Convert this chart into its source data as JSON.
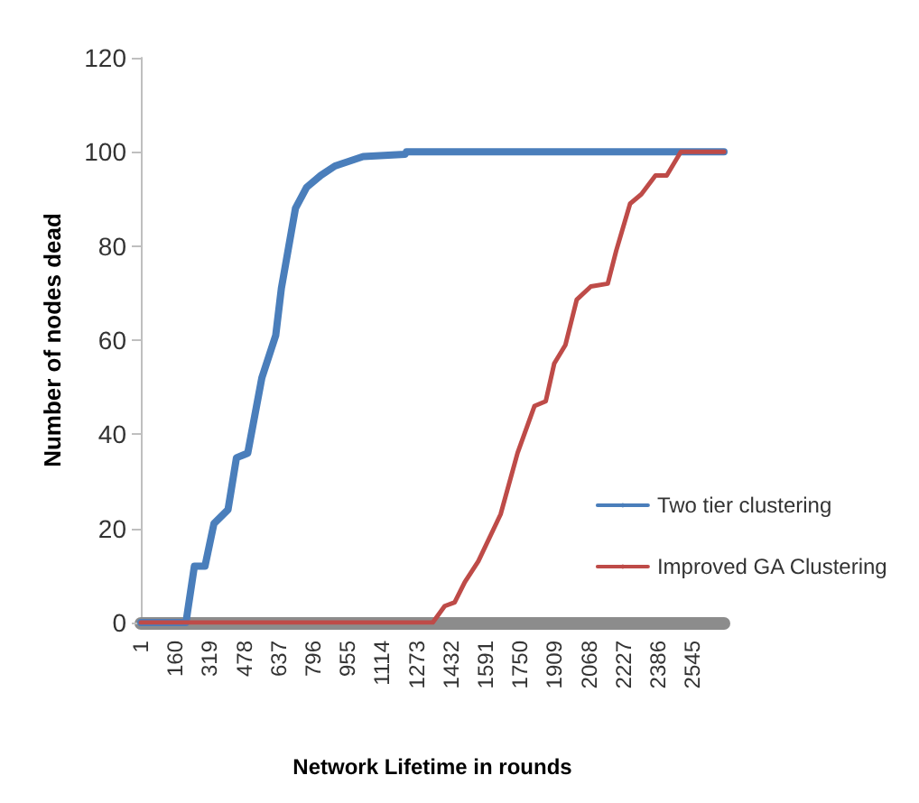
{
  "chart_data": {
    "type": "line",
    "xlabel": "Network Lifetime in rounds",
    "ylabel": "Number of nodes dead",
    "xlim": [
      1,
      2690
    ],
    "xticks": [
      1,
      160,
      319,
      478,
      637,
      796,
      955,
      1114,
      1273,
      1432,
      1591,
      1750,
      1909,
      2068,
      2227,
      2386,
      2545
    ],
    "ylim": [
      0,
      120
    ],
    "yticks": [
      0,
      20,
      40,
      60,
      80,
      100,
      120
    ],
    "grid": false,
    "legend": "bottom right",
    "marker": "none",
    "line_style": "solid",
    "series": [
      {
        "name": "Two tier clustering",
        "color": "#4a7ebb",
        "x": [
          1,
          209,
          248,
          297,
          338,
          403,
          442,
          494,
          559,
          623,
          649,
          714,
          766,
          831,
          896,
          1026,
          1220,
          1225,
          2690
        ],
        "values": [
          0,
          0,
          12,
          12,
          21,
          24,
          35,
          36,
          52,
          61,
          71,
          88,
          92.5,
          95,
          97,
          99,
          99.5,
          100,
          100
        ]
      },
      {
        "name": "Improved GA Clustering",
        "color": "#be4b48",
        "x": [
          1,
          1347,
          1402,
          1448,
          1495,
          1557,
          1660,
          1738,
          1816,
          1868,
          1907,
          1959,
          2011,
          2076,
          2154,
          2193,
          2257,
          2309,
          2374,
          2426,
          2465,
          2491,
          2690
        ],
        "values": [
          0,
          0,
          3.5,
          4.3,
          8.6,
          13,
          23,
          36,
          46,
          47,
          55,
          59,
          68.6,
          71.4,
          72,
          79,
          89,
          91,
          95,
          95,
          98,
          100,
          100
        ]
      }
    ]
  }
}
